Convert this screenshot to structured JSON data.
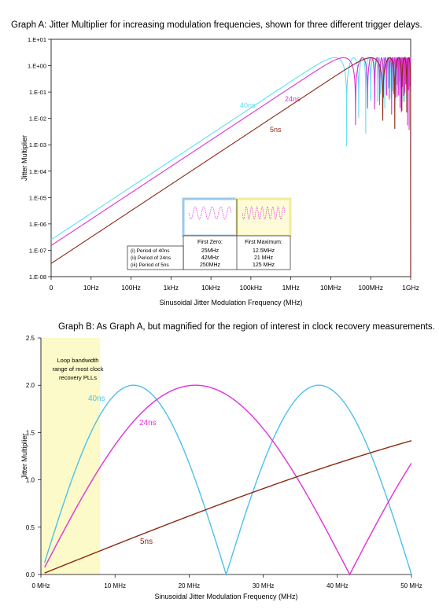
{
  "chart_data": [
    {
      "type": "line",
      "title": "Graph A: Jitter Multiplier for increasing modulation frequencies, shown for three different trigger delays.",
      "xlabel": "Sinusoidal Jitter Modulation Frequency (MHz)",
      "ylabel": "Jitter Multiplier",
      "xscale": "log",
      "yscale": "log",
      "xlim": [
        1,
        1000000000
      ],
      "ylim": [
        1e-08,
        10
      ],
      "x_ticks": [
        {
          "value": 1,
          "label": "0"
        },
        {
          "value": 10,
          "label": "10Hz"
        },
        {
          "value": 100,
          "label": "100Hz"
        },
        {
          "value": 1000,
          "label": "1kHz"
        },
        {
          "value": 10000,
          "label": "10kHz"
        },
        {
          "value": 100000,
          "label": "100kHz"
        },
        {
          "value": 1000000,
          "label": "1MHz"
        },
        {
          "value": 10000000,
          "label": "10MHz"
        },
        {
          "value": 100000000,
          "label": "100MHz"
        },
        {
          "value": 1000000000,
          "label": "1GHz"
        }
      ],
      "y_ticks": [
        {
          "value": 1e-08,
          "label": "1.E-08"
        },
        {
          "value": 1e-07,
          "label": "1.E-07"
        },
        {
          "value": 1e-06,
          "label": "1.E-06"
        },
        {
          "value": 1e-05,
          "label": "1.E-05"
        },
        {
          "value": 0.0001,
          "label": "1.E-04"
        },
        {
          "value": 0.001,
          "label": "1.E-03"
        },
        {
          "value": 0.01,
          "label": "1.E-02"
        },
        {
          "value": 0.1,
          "label": "1.E-01"
        },
        {
          "value": 1,
          "label": "1.E+00"
        },
        {
          "value": 10,
          "label": "1.E+01"
        }
      ],
      "grid": false,
      "series": [
        {
          "name": "40ns",
          "color": "#5fe0f0",
          "delay_ns": 40,
          "x": [
            1,
            100,
            10000,
            1000000,
            5000000,
            12500000,
            25000000
          ],
          "y": [
            2.5e-07,
            2.5e-05,
            0.0025,
            0.25,
            1.18,
            2.0,
            0.0
          ]
        },
        {
          "name": "24ns",
          "color": "#e030d8",
          "delay_ns": 24,
          "x": [
            1,
            100,
            10000,
            1000000,
            5000000,
            21000000,
            42000000
          ],
          "y": [
            1.5e-07,
            1.5e-05,
            0.0015,
            0.15,
            0.73,
            2.0,
            0.0
          ]
        },
        {
          "name": "5ns",
          "color": "#8b2a12",
          "delay_ns": 5,
          "x": [
            1,
            100,
            10000,
            1000000,
            10000000,
            125000000,
            250000000
          ],
          "y": [
            3.1e-08,
            3.1e-06,
            0.00031,
            0.031,
            0.31,
            2.0,
            0.0
          ]
        }
      ],
      "inset_table": {
        "col_headers": [
          "First Zero:",
          "First Maximum:"
        ],
        "rows": [
          {
            "label": "(i) Period of 40ns",
            "first_zero": "25MHz",
            "first_max": "12.5MHz"
          },
          {
            "label": "(ii) Period of 24ns",
            "first_zero": "42MHz",
            "first_max": "21 MHz"
          },
          {
            "label": "(iii) Period of 5ns",
            "first_zero": "250MHz",
            "first_max": "125 MHz"
          }
        ]
      }
    },
    {
      "type": "line",
      "title": "Graph B: As Graph A, but magnified for the region of interest in clock recovery measurements.",
      "xlabel": "Sinusoidal Jitter Modulation Frequency (MHz)",
      "ylabel": "Jitter Multiplier",
      "xlim": [
        0,
        50
      ],
      "ylim": [
        0,
        2.5
      ],
      "x_ticks": [
        {
          "value": 0,
          "label": "0 MHz"
        },
        {
          "value": 10,
          "label": "10 MHz"
        },
        {
          "value": 20,
          "label": "20 MHz"
        },
        {
          "value": 30,
          "label": "30 MHz"
        },
        {
          "value": 40,
          "label": "40 MHz"
        },
        {
          "value": 50,
          "label": "50 MHz"
        }
      ],
      "y_ticks": [
        {
          "value": 0,
          "label": "0.0"
        },
        {
          "value": 0.5,
          "label": "0.5"
        },
        {
          "value": 1,
          "label": "1.0"
        },
        {
          "value": 1.5,
          "label": "1.5"
        },
        {
          "value": 2,
          "label": "2.0"
        },
        {
          "value": 2.5,
          "label": "2.5"
        }
      ],
      "grid": false,
      "shaded_region": {
        "x": [
          0,
          8
        ],
        "color": "#fcfac8",
        "annotation": [
          "Loop bandwidth",
          "range of most clock",
          "recovery PLLs"
        ]
      },
      "series": [
        {
          "name": "40ns",
          "color": "#4ec0ec",
          "delay_ns": 40,
          "x": [
            0.5,
            5,
            10,
            12.5,
            15,
            20,
            25,
            30,
            35,
            37.5,
            40,
            45,
            50
          ],
          "y": [
            0.25,
            1.41,
            1.9,
            2.0,
            1.9,
            1.41,
            0.0,
            1.41,
            1.9,
            2.0,
            1.9,
            1.41,
            0.0
          ]
        },
        {
          "name": "24ns",
          "color": "#e030d8",
          "delay_ns": 24,
          "x": [
            0.5,
            5,
            10,
            15,
            21,
            25,
            30,
            35,
            42,
            45,
            50
          ],
          "y": [
            0.15,
            0.73,
            1.37,
            1.8,
            2.0,
            1.95,
            1.69,
            1.25,
            0.0,
            0.45,
            1.19
          ]
        },
        {
          "name": "5ns",
          "color": "#8b2a12",
          "delay_ns": 5,
          "x": [
            0.5,
            10,
            20,
            30,
            40,
            50
          ],
          "y": [
            0.03,
            0.31,
            0.62,
            0.91,
            1.18,
            1.41
          ]
        }
      ]
    }
  ]
}
